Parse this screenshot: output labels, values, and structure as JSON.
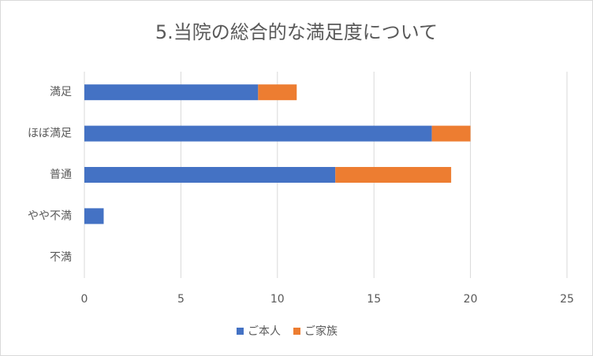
{
  "chart_data": {
    "type": "stacked_bar_horizontal",
    "title": "5.当院の総合的な満足度について",
    "categories": [
      "満足",
      "ほぼ満足",
      "普通",
      "やや不満",
      "不満"
    ],
    "series": [
      {
        "name": "ご本人",
        "color": "#4472c4",
        "values": [
          9,
          18,
          13,
          1,
          0
        ]
      },
      {
        "name": "ご家族",
        "color": "#ed7d31",
        "values": [
          2,
          2,
          6,
          0,
          0
        ]
      }
    ],
    "xlim": [
      0,
      25
    ],
    "xticks": [
      0,
      5,
      10,
      15,
      20,
      25
    ],
    "grid": true,
    "legend": "bottom"
  }
}
